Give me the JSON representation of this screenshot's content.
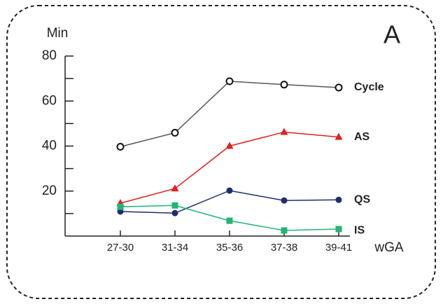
{
  "chart_data": {
    "type": "line",
    "panel_label": "A",
    "y_label": "Min",
    "x_label": "wGA",
    "categories": [
      "27-30",
      "31-34",
      "35-36",
      "37-38",
      "39-41"
    ],
    "ylim": [
      0,
      80
    ],
    "yticks": [
      20,
      40,
      60,
      80
    ],
    "yminorticks": [
      10,
      30,
      50,
      70
    ],
    "series": [
      {
        "name": "Cycle",
        "color": "#555555",
        "label_color": "#111111",
        "marker": "open-circle",
        "values": [
          39.7,
          45.9,
          68.8,
          67.3,
          66.0
        ]
      },
      {
        "name": "AS",
        "color": "#e0201e",
        "label_color": "#e0201e",
        "marker": "triangle",
        "values": [
          14.6,
          21.1,
          40.0,
          46.2,
          44.0
        ]
      },
      {
        "name": "QS",
        "color": "#1f2d6b",
        "label_color": "#1f2d6b",
        "marker": "circle",
        "values": [
          10.9,
          10.2,
          20.2,
          15.8,
          16.1
        ]
      },
      {
        "name": "IS",
        "color": "#22b573",
        "label_color": "#2ecc55",
        "marker": "square",
        "values": [
          13.0,
          13.6,
          6.8,
          2.5,
          3.1
        ]
      }
    ]
  }
}
